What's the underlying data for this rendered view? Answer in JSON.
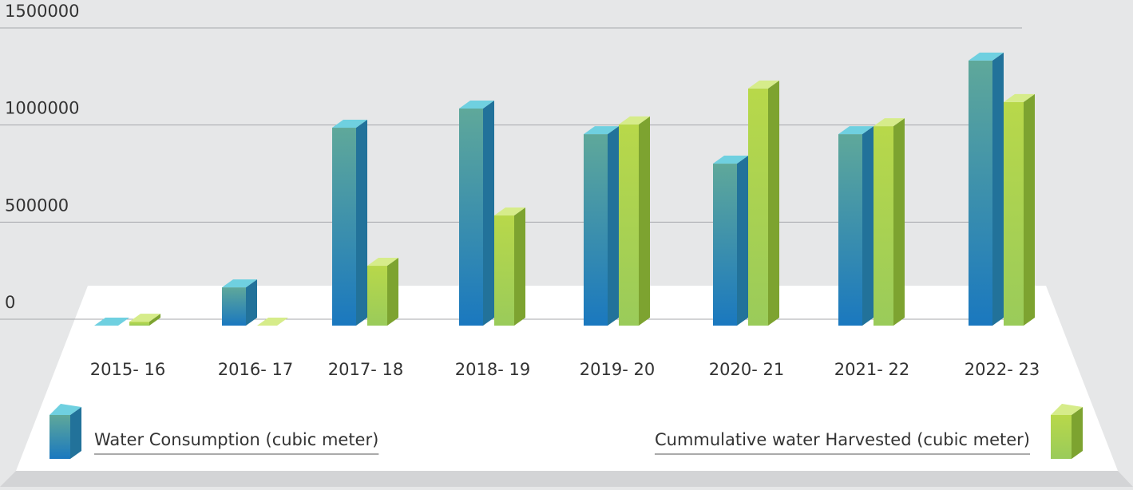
{
  "chart_data": {
    "type": "bar3d",
    "categories": [
      "2015- 16",
      "2016- 17",
      "2017- 18",
      "2018- 19",
      "2019- 20",
      "2020- 21",
      "2021- 22",
      "2022- 23"
    ],
    "series": [
      {
        "name": "Water Consumption (cubic meter)",
        "color": "#2a8fc0",
        "values": [
          0,
          197000,
          1019000,
          1118000,
          986000,
          834000,
          986000,
          1365000
        ]
      },
      {
        "name": "Cummulative water Harvested (cubic meter)",
        "color": "#9ccc3c",
        "values": [
          20000,
          0,
          308000,
          567000,
          1036000,
          1221000,
          1027000,
          1151000
        ]
      }
    ],
    "ylim": [
      0,
      1500000
    ],
    "yticks": [
      0,
      500000,
      1000000,
      1500000
    ],
    "grid": true
  }
}
